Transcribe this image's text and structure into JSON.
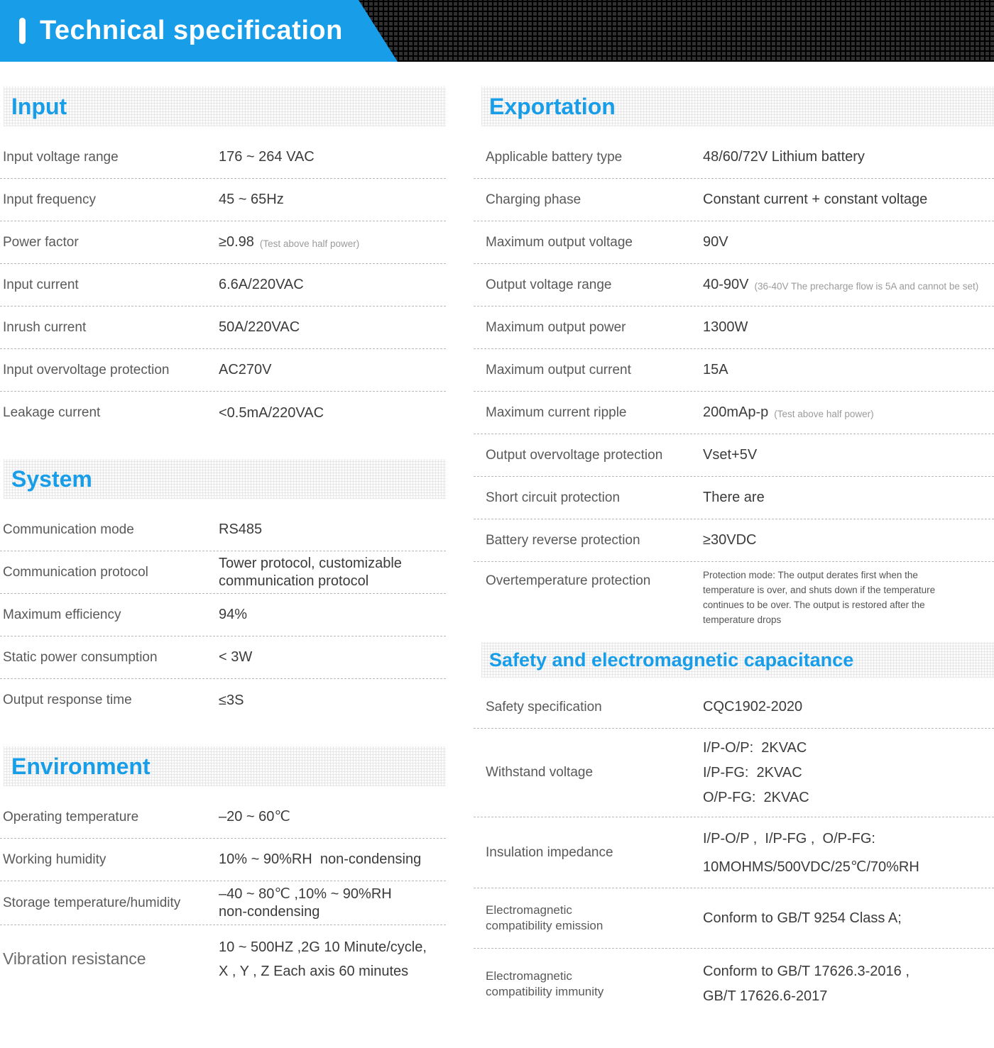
{
  "banner": {
    "title": "Technical specification"
  },
  "colors": {
    "accent_blue": "#189de8",
    "banner_background": "#1a1a1a",
    "label_gray": "#595959",
    "value_dark": "#3b3b3b",
    "note_gray": "#9b9b9b"
  },
  "sections": {
    "input": {
      "title": "Input",
      "rows": [
        {
          "label": "Input voltage range",
          "value": "176 ~ 264 VAC"
        },
        {
          "label": "Input frequency",
          "value": "45 ~ 65Hz"
        },
        {
          "label": "Power factor",
          "value": "≥0.98",
          "note": "(Test above half power)"
        },
        {
          "label": "Input current",
          "value": "6.6A/220VAC"
        },
        {
          "label": "Inrush current",
          "value": "50A/220VAC"
        },
        {
          "label": "Input overvoltage protection",
          "value": "AC270V"
        },
        {
          "label": "Leakage current",
          "value": "<0.5mA/220VAC"
        }
      ]
    },
    "system": {
      "title": "System",
      "rows": [
        {
          "label": "Communication mode",
          "value": "RS485"
        },
        {
          "label": "Communication protocol",
          "value": "Tower protocol, customizable\ncommunication protocol"
        },
        {
          "label": "Maximum efficiency",
          "value": "94%"
        },
        {
          "label": "Static power consumption",
          "value": "< 3W"
        },
        {
          "label": "Output response time",
          "value": "≤3S"
        }
      ]
    },
    "environment": {
      "title": "Environment",
      "rows": [
        {
          "label": "Operating temperature",
          "value": "–20 ~ 60℃"
        },
        {
          "label": "Working humidity",
          "value": "10% ~ 90%RH  non-condensing"
        },
        {
          "label": "Storage temperature/humidity",
          "value": "–40 ~ 80℃ ,10% ~ 90%RH\nnon-condensing"
        },
        {
          "label": "Vibration resistance",
          "value": "10 ~ 500HZ ,2G 10 Minute/cycle,\nX , Y , Z Each axis 60 minutes"
        }
      ]
    },
    "exportation": {
      "title": "Exportation",
      "rows": [
        {
          "label": "Applicable battery type",
          "value": "48/60/72V Lithium battery"
        },
        {
          "label": "Charging phase",
          "value": "Constant current + constant voltage"
        },
        {
          "label": "Maximum output voltage",
          "value": "90V"
        },
        {
          "label": "Output voltage range",
          "value": "40-90V",
          "note": "(36-40V The precharge flow is 5A and cannot be set)"
        },
        {
          "label": "Maximum output power",
          "value": "1300W"
        },
        {
          "label": "Maximum output current",
          "value": "15A"
        },
        {
          "label": "Maximum current ripple",
          "value": "200mAp-p",
          "note": "(Test above half power)"
        },
        {
          "label": "Output overvoltage protection",
          "value": "Vset+5V"
        },
        {
          "label": "Short circuit protection",
          "value": "There are"
        },
        {
          "label": "Battery reverse protection",
          "value": "≥30VDC"
        },
        {
          "label": "Overtemperature protection",
          "value": "Protection mode: The output derates first when the\ntemperature is over, and shuts down if the temperature\ncontinues to be over. The output is restored after the\ntemperature drops"
        }
      ]
    },
    "safety": {
      "title": "Safety and electromagnetic capacitance",
      "rows": [
        {
          "label": "Safety specification",
          "value": "CQC1902-2020"
        },
        {
          "label": "Withstand voltage",
          "value": "I/P-O/P:  2KVAC\nI/P-FG:  2KVAC\nO/P-FG:  2KVAC"
        },
        {
          "label": "Insulation impedance",
          "value": "I/P-O/P ,  I/P-FG ,  O/P-FG:\n10MOHMS/500VDC/25℃/70%RH"
        },
        {
          "label": "Electromagnetic\ncompatibility emission",
          "value": "Conform to GB/T 9254 Class A;"
        },
        {
          "label": "Electromagnetic\ncompatibility immunity",
          "value": "Conform to GB/T 17626.3-2016 ,\nGB/T 17626.6-2017"
        }
      ]
    }
  }
}
